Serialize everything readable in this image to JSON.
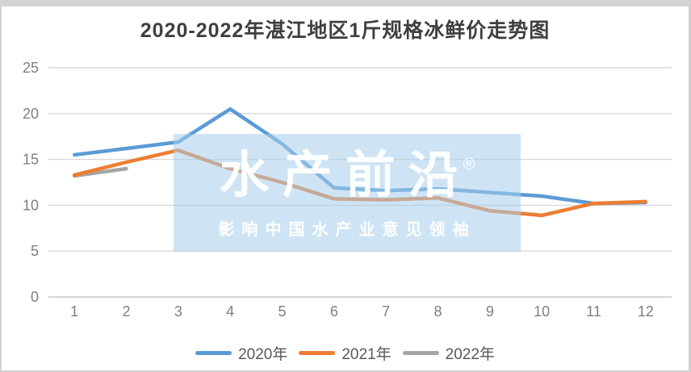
{
  "title": "2020-2022年湛江地区1斤规格冰鲜价走势图",
  "watermark": {
    "brand": "水产前沿",
    "registered_mark": "®",
    "slogan": "影响中国水产业意见领袖",
    "bg_rgba": "rgba(165,205,235,0.55)"
  },
  "colors": {
    "title_text": "#3F3F3F",
    "axis_text": "#7F7F7F",
    "gridline": "#D9D9D9",
    "axis_line": "#C9C9C9",
    "series_2020": "#5B9BD5",
    "series_2021": "#ED7D31",
    "series_2022": "#A5A5A5"
  },
  "chart_data": {
    "type": "line",
    "title": "2020-2022年湛江地区1斤规格冰鲜价走势图",
    "x": [
      1,
      2,
      3,
      4,
      5,
      6,
      7,
      8,
      9,
      10,
      11,
      12
    ],
    "series": [
      {
        "name": "2020年",
        "color": "#5B9BD5",
        "values": [
          15.5,
          16.2,
          16.9,
          20.5,
          16.7,
          11.9,
          11.6,
          11.8,
          11.4,
          11.0,
          10.2,
          10.3
        ]
      },
      {
        "name": "2021年",
        "color": "#ED7D31",
        "values": [
          13.3,
          14.7,
          16.0,
          14.0,
          12.5,
          10.7,
          10.6,
          10.8,
          9.4,
          8.9,
          10.2,
          10.4
        ]
      },
      {
        "name": "2022年",
        "color": "#A5A5A5",
        "values": [
          13.2,
          14.0,
          null,
          null,
          null,
          null,
          null,
          null,
          null,
          null,
          null,
          null
        ]
      }
    ],
    "xlabel": "",
    "ylabel": "",
    "ylim": [
      0,
      25
    ],
    "yticks": [
      0,
      5,
      10,
      15,
      20,
      25
    ],
    "grid": true,
    "legend_position": "bottom"
  }
}
